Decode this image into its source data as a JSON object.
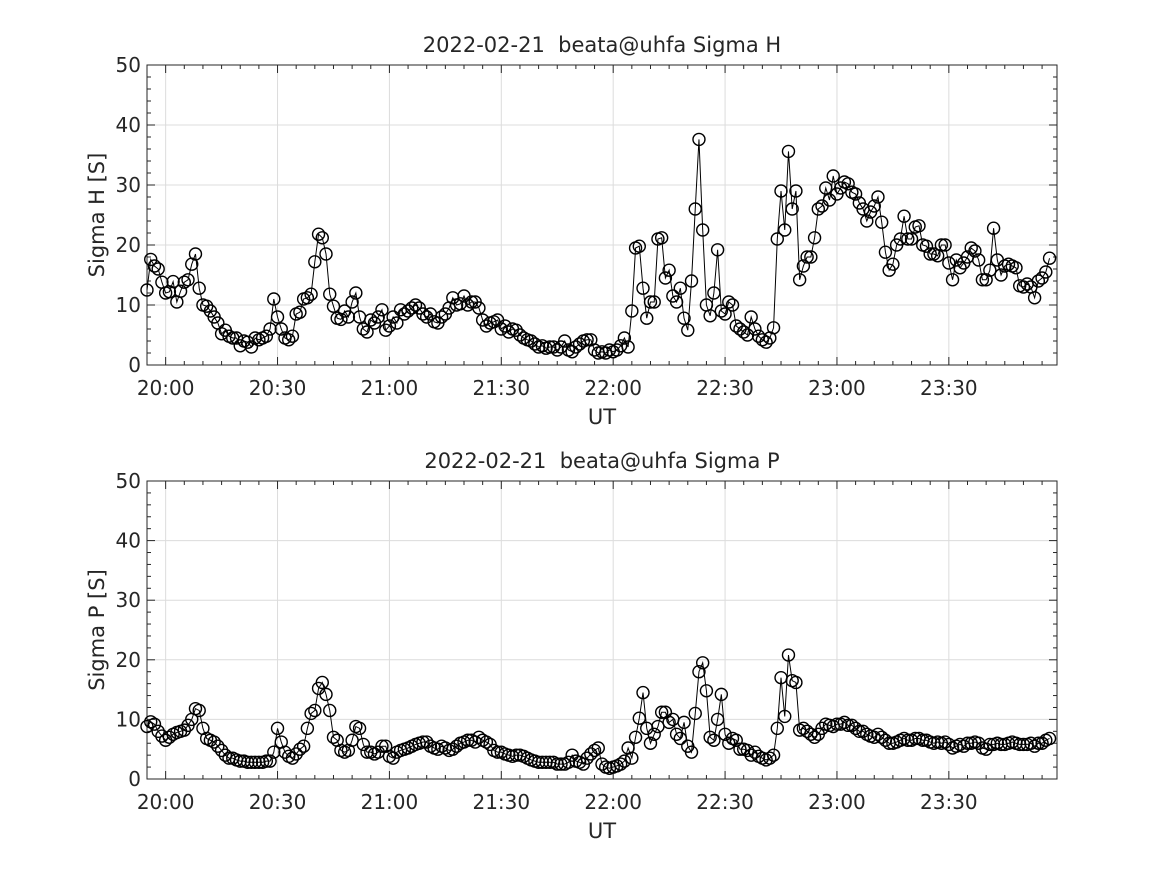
{
  "chart_data": [
    {
      "type": "line",
      "title": "2022-02-21  beata@uhfa Sigma H",
      "xlabel": "UT",
      "ylabel": "Sigma H [S]",
      "xlim": [
        "19:55",
        "23:59"
      ],
      "ylim": [
        0,
        50
      ],
      "yticks": [
        0,
        10,
        20,
        30,
        40,
        50
      ],
      "xticks": [
        "20:00",
        "20:30",
        "21:00",
        "21:30",
        "22:00",
        "22:30",
        "23:00",
        "23:30"
      ],
      "grid": true,
      "marker": "circle",
      "x_start": "19:55",
      "x_step_minutes": 1,
      "values": [
        12.5,
        17.6,
        16.5,
        16.0,
        13.8,
        12.0,
        12.2,
        13.9,
        10.5,
        12.3,
        13.8,
        14.2,
        16.8,
        18.5,
        12.8,
        10.0,
        9.8,
        9.0,
        8.0,
        7.0,
        5.2,
        5.8,
        4.8,
        4.5,
        4.5,
        3.2,
        4.0,
        3.8,
        3.0,
        4.5,
        4.2,
        4.5,
        4.8,
        6.0,
        11.0,
        8.0,
        6.0,
        4.5,
        4.2,
        4.8,
        8.5,
        8.8,
        11.0,
        11.2,
        11.8,
        17.2,
        21.8,
        21.2,
        18.5,
        11.8,
        9.8,
        7.8,
        7.6,
        9.0,
        8.0,
        10.5,
        12.0,
        8.0,
        6.0,
        5.5,
        7.5,
        7.0,
        8.0,
        9.2,
        5.8,
        6.5,
        8.0,
        7.0,
        9.2,
        8.5,
        9.0,
        9.5,
        10.0,
        9.5,
        8.5,
        8.0,
        8.5,
        7.2,
        7.0,
        8.0,
        8.5,
        9.5,
        11.2,
        10.0,
        10.2,
        11.5,
        10.0,
        10.5,
        10.5,
        9.5,
        7.5,
        6.5,
        7.0,
        7.2,
        7.5,
        6.0,
        6.5,
        5.5,
        6.0,
        5.8,
        5.0,
        4.5,
        4.2,
        4.0,
        3.5,
        3.0,
        3.2,
        2.8,
        3.0,
        3.0,
        2.5,
        3.0,
        4.0,
        2.5,
        2.2,
        3.0,
        3.5,
        4.0,
        4.2,
        4.2,
        2.5,
        2.0,
        2.2,
        2.0,
        2.5,
        2.2,
        2.5,
        3.2,
        4.5,
        3.0,
        9.0,
        19.5,
        19.8,
        12.8,
        7.8,
        10.5,
        10.5,
        21.0,
        21.2,
        14.5,
        15.8,
        11.5,
        10.5,
        12.8,
        7.8,
        5.8,
        14.0,
        26.0,
        37.6,
        22.5,
        10.0,
        8.2,
        12.0,
        19.2,
        9.0,
        8.5,
        10.5,
        10.0,
        6.5,
        6.0,
        5.5,
        5.0,
        8.0,
        6.0,
        4.8,
        4.2,
        3.8,
        4.5,
        6.2,
        21.0,
        29.0,
        22.5,
        35.6,
        26.0,
        29.0,
        14.2,
        16.5,
        18.0,
        18.0,
        21.2,
        26.0,
        26.5,
        29.5,
        27.5,
        31.5,
        28.5,
        29.5,
        30.5,
        30.2,
        28.8,
        28.5,
        27.0,
        26.0,
        24.0,
        25.5,
        26.5,
        28.0,
        23.8,
        18.8,
        15.8,
        16.8,
        20.0,
        21.0,
        24.8,
        21.0,
        21.0,
        23.0,
        23.2,
        20.0,
        19.8,
        18.5,
        18.5,
        18.2,
        20.0,
        20.0,
        17.0,
        14.2,
        17.5,
        16.2,
        17.0,
        18.0,
        19.5,
        19.0,
        17.5,
        14.2,
        14.2,
        15.8,
        22.8,
        17.5,
        15.0,
        16.5,
        16.8,
        16.5,
        16.2,
        13.2,
        13.0,
        13.5,
        13.0,
        11.2,
        14.0,
        14.5,
        15.5,
        17.8
      ]
    },
    {
      "type": "line",
      "title": "2022-02-21  beata@uhfa Sigma P",
      "xlabel": "UT",
      "ylabel": "Sigma P [S]",
      "xlim": [
        "19:55",
        "23:59"
      ],
      "ylim": [
        0,
        50
      ],
      "yticks": [
        0,
        10,
        20,
        30,
        40,
        50
      ],
      "xticks": [
        "20:00",
        "20:30",
        "21:00",
        "21:30",
        "22:00",
        "22:30",
        "23:00",
        "23:30"
      ],
      "grid": true,
      "marker": "circle",
      "x_start": "19:55",
      "x_step_minutes": 1,
      "values": [
        8.8,
        9.6,
        9.2,
        8.0,
        7.2,
        6.5,
        7.0,
        7.5,
        7.8,
        8.0,
        8.2,
        9.0,
        10.0,
        11.8,
        11.5,
        8.5,
        6.8,
        6.5,
        6.2,
        5.5,
        4.8,
        4.0,
        3.5,
        3.5,
        3.2,
        3.0,
        3.0,
        2.8,
        2.8,
        2.8,
        2.8,
        2.8,
        3.0,
        3.0,
        4.5,
        8.5,
        6.2,
        4.5,
        3.8,
        3.5,
        4.2,
        5.0,
        5.5,
        8.5,
        11.0,
        11.5,
        15.2,
        16.2,
        14.2,
        11.5,
        7.0,
        6.5,
        4.8,
        4.5,
        4.8,
        6.5,
        8.8,
        8.5,
        5.8,
        4.5,
        4.5,
        4.2,
        4.5,
        5.5,
        5.5,
        3.8,
        3.5,
        4.5,
        4.8,
        5.0,
        5.2,
        5.5,
        5.8,
        6.0,
        6.2,
        6.2,
        5.5,
        5.2,
        5.0,
        5.5,
        5.2,
        4.8,
        5.0,
        5.5,
        6.0,
        6.2,
        6.5,
        6.5,
        6.2,
        7.0,
        6.5,
        6.2,
        5.8,
        4.8,
        4.5,
        4.5,
        4.2,
        4.0,
        3.8,
        4.0,
        4.0,
        3.8,
        3.5,
        3.2,
        3.0,
        2.8,
        2.8,
        2.8,
        2.8,
        2.8,
        2.5,
        2.5,
        2.5,
        2.8,
        4.0,
        3.0,
        2.8,
        2.5,
        3.5,
        4.2,
        4.8,
        5.2,
        2.5,
        2.0,
        1.8,
        2.0,
        2.2,
        2.5,
        3.0,
        5.2,
        3.5,
        7.0,
        10.2,
        14.5,
        8.5,
        6.0,
        7.5,
        8.8,
        11.2,
        11.2,
        9.5,
        10.0,
        7.5,
        6.8,
        9.5,
        5.5,
        4.5,
        11.0,
        18.0,
        19.5,
        14.8,
        7.0,
        6.5,
        10.0,
        14.2,
        7.5,
        6.0,
        6.8,
        6.5,
        5.0,
        5.0,
        4.8,
        4.0,
        4.5,
        3.8,
        3.5,
        3.2,
        3.5,
        4.0,
        8.5,
        17.0,
        10.5,
        20.8,
        16.5,
        16.2,
        8.2,
        8.5,
        8.0,
        7.5,
        7.0,
        7.5,
        8.5,
        9.2,
        9.0,
        8.8,
        9.2,
        9.2,
        9.5,
        9.0,
        9.0,
        8.5,
        8.0,
        8.0,
        7.5,
        7.2,
        7.0,
        7.5,
        7.0,
        6.5,
        6.0,
        6.0,
        6.2,
        6.5,
        6.8,
        6.5,
        6.5,
        6.8,
        6.8,
        6.5,
        6.5,
        6.2,
        6.0,
        6.2,
        6.0,
        6.2,
        5.8,
        5.2,
        5.5,
        5.8,
        5.5,
        6.0,
        6.0,
        6.2,
        6.0,
        5.2,
        5.0,
        5.8,
        5.8,
        6.0,
        5.8,
        5.8,
        6.0,
        6.2,
        6.0,
        5.8,
        5.8,
        5.8,
        6.0,
        5.5,
        6.0,
        6.0,
        6.5,
        6.8
      ]
    }
  ]
}
